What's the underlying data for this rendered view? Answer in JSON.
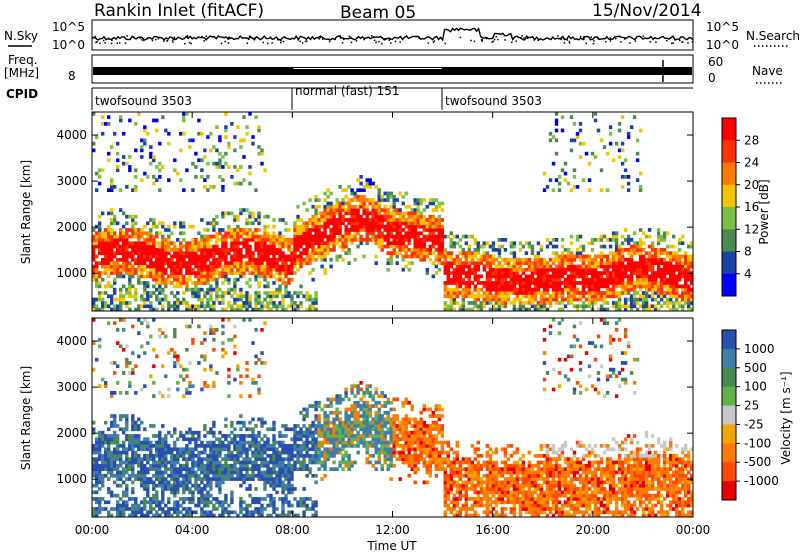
{
  "header": {
    "station": "Rankin Inlet (fitACF)",
    "beam": "Beam 05",
    "date": "15/Nov/2014"
  },
  "top_panels": {
    "nsky_label": "N.Sky",
    "nsearch_label": "N.Search",
    "noise_tick_top": "10^5",
    "noise_tick_bottom": "10^0",
    "freq_label": "Freq.",
    "freq_unit": "[MHz]",
    "freq_ticks": [
      "8"
    ],
    "nave_label": "Nave",
    "nave_ticks": [
      "60",
      "0"
    ],
    "cpid_label": "CPID",
    "cpid_segments": [
      {
        "label": "twofsound 3503",
        "start": 0,
        "end": 8
      },
      {
        "label": "normal (fast) 151",
        "start": 8,
        "end": 14
      },
      {
        "label": "twofsound 3503",
        "start": 14,
        "end": 24
      }
    ]
  },
  "chart_data": [
    {
      "type": "heatmap",
      "title": "Power",
      "xlabel": "Time UT",
      "ylabel": "Slant Range [km]",
      "xlim": [
        0,
        24
      ],
      "ylim": [
        180,
        4500
      ],
      "x_ticks": [
        "00:00",
        "04:00",
        "08:00",
        "12:00",
        "16:00",
        "20:00",
        "00:00"
      ],
      "y_ticks": [
        "1000",
        "2000",
        "3000",
        "4000"
      ],
      "y_tick_values": [
        1000,
        2000,
        3000,
        4000
      ],
      "colorbar_label": "Power [dB]",
      "colorbar_ticks": [
        "28",
        "24",
        "20",
        "16",
        "12",
        "8",
        "4"
      ],
      "colorbar_colors": [
        "#ff0000",
        "#ff3300",
        "#ff7a00",
        "#f4c400",
        "#7ac143",
        "#4a8a52",
        "#1a43a8",
        "#0000ff"
      ]
    },
    {
      "type": "heatmap",
      "title": "Velocity",
      "xlabel": "Time UT",
      "ylabel": "Slant Range [km]",
      "xlim": [
        0,
        24
      ],
      "ylim": [
        180,
        4500
      ],
      "x_ticks": [
        "00:00",
        "04:00",
        "08:00",
        "12:00",
        "16:00",
        "20:00",
        "00:00"
      ],
      "y_ticks": [
        "1000",
        "2000",
        "3000",
        "4000"
      ],
      "y_tick_values": [
        1000,
        2000,
        3000,
        4000
      ],
      "colorbar_label": "Velocity [m s⁻¹]",
      "colorbar_ticks": [
        "1000",
        "500",
        "100",
        "25",
        "-25",
        "-100",
        "-500",
        "-1000"
      ],
      "colorbar_colors": [
        "#2a4fb0",
        "#3d7fa6",
        "#4a8a52",
        "#62b24a",
        "#c8c8c8",
        "#f2a500",
        "#ff7a00",
        "#ff4a00",
        "#e60000"
      ]
    }
  ],
  "x_axis": {
    "title": "Time UT",
    "ticks": [
      "00:00",
      "04:00",
      "08:00",
      "12:00",
      "16:00",
      "20:00",
      "00:00"
    ]
  }
}
